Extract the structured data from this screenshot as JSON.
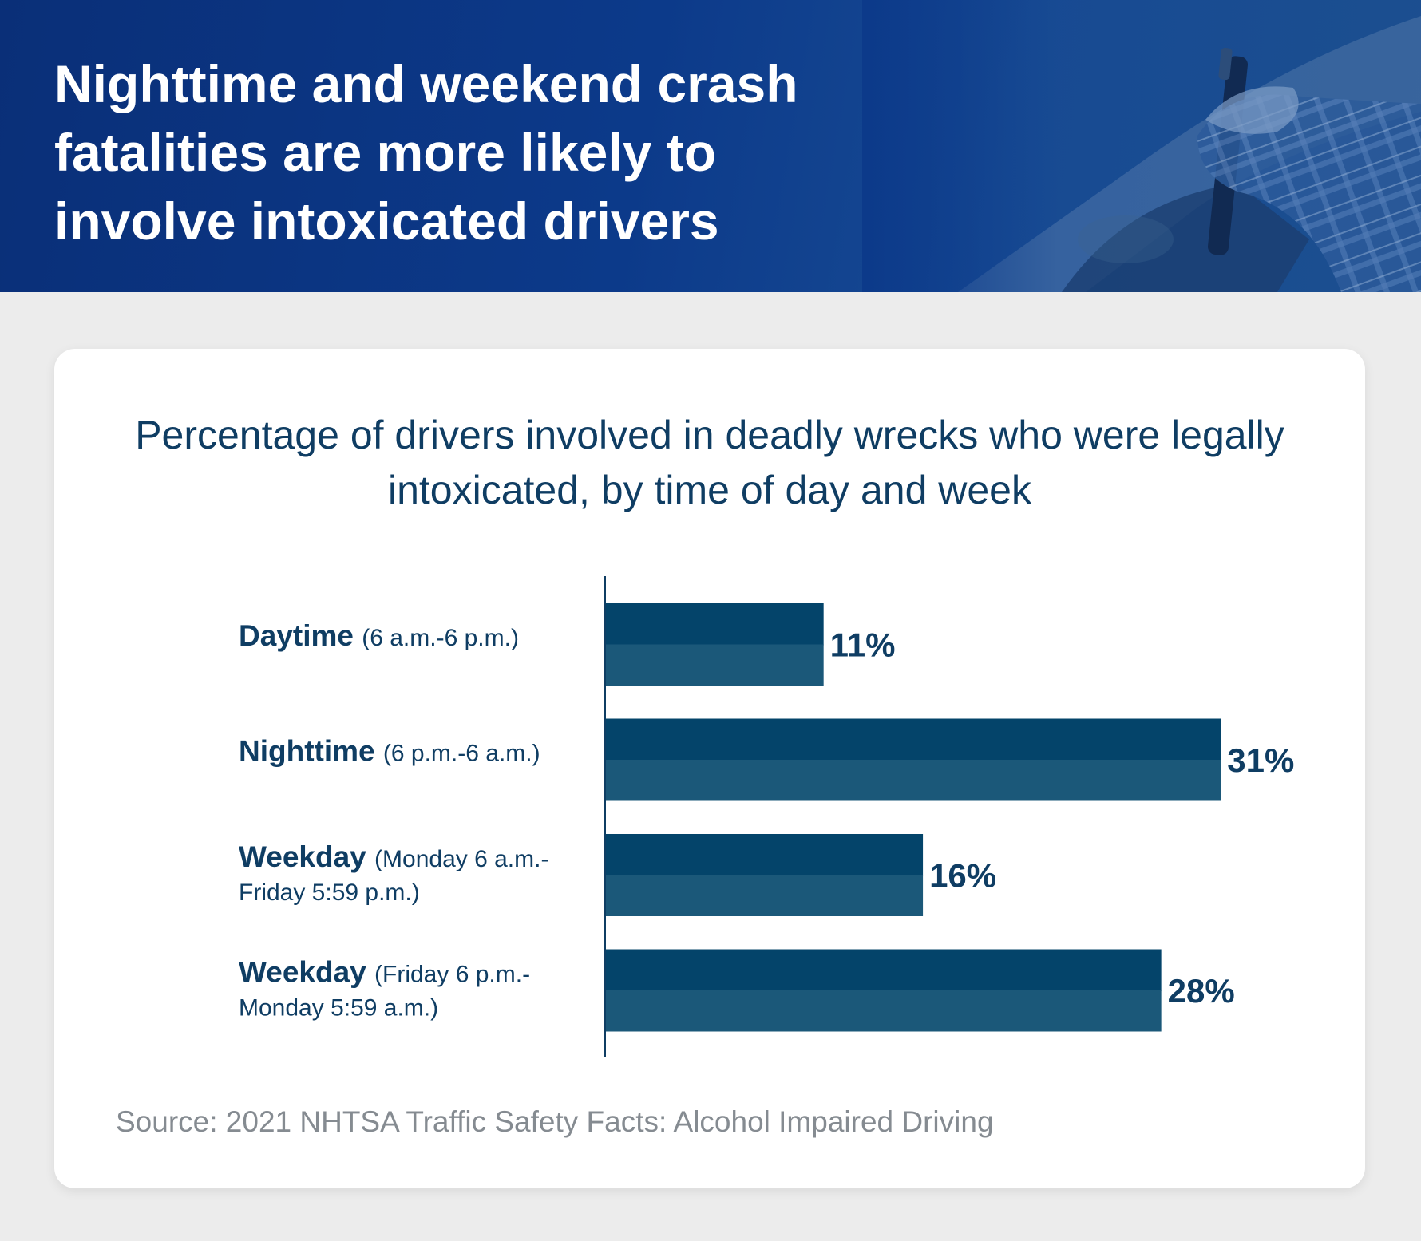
{
  "header": {
    "title": "Nighttime and weekend crash fatalities are more likely to involve intoxicated drivers"
  },
  "colors": {
    "banner": "#0c3a8a",
    "bar_top": "#04446a",
    "bar_bottom": "#1b5879",
    "text": "#0f3d63",
    "source": "#858b91"
  },
  "chart_data": {
    "type": "bar",
    "orientation": "horizontal",
    "title": "Percentage of drivers involved in deadly wrecks who were legally intoxicated, by time of day and week",
    "categories": [
      {
        "name": "Daytime",
        "detail": [
          "(6 a.m.-6 p.m.)"
        ]
      },
      {
        "name": "Nighttime",
        "detail": [
          "(6 p.m.-6 a.m.)"
        ]
      },
      {
        "name": "Weekday",
        "detail": [
          "(Monday 6 a.m.-",
          "Friday 5:59 p.m.)"
        ]
      },
      {
        "name": "Weekday",
        "detail": [
          "(Friday 6 p.m.-",
          "Monday 5:59 a.m.)"
        ]
      }
    ],
    "values": [
      11,
      31,
      16,
      28
    ],
    "value_labels": [
      "11%",
      "31%",
      "16%",
      "28%"
    ],
    "unit": "%",
    "xlim": [
      0,
      50
    ],
    "grid": false,
    "legend": "none"
  },
  "footer": {
    "source": "Source: 2021 NHTSA Traffic Safety Facts: Alcohol Impaired Driving"
  }
}
